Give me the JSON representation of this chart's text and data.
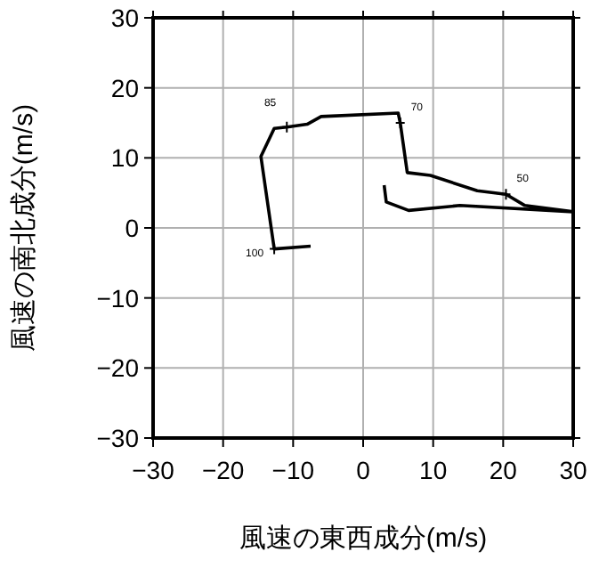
{
  "chart_data": {
    "type": "line",
    "xlabel": "風速の東西成分(m/s)",
    "ylabel": "風速の南北成分(m/s)",
    "xlim": [
      -30,
      30
    ],
    "ylim": [
      -30,
      30
    ],
    "xticks": [
      -30,
      -20,
      -10,
      0,
      10,
      20,
      30
    ],
    "yticks": [
      -30,
      -20,
      -10,
      0,
      10,
      20,
      30
    ],
    "grid": true,
    "line_style": "solid",
    "marker": "none",
    "series": [
      {
        "color": "#000000",
        "x": [
          -7.5,
          -12.7,
          -14.6,
          -12.7,
          -10.9,
          -8.0,
          -6.0,
          5.0,
          5.3,
          6.3,
          9.6,
          16.3,
          20.4,
          23.1,
          30.0,
          13.8,
          6.5,
          3.3,
          3.0
        ],
        "values": [
          -2.6,
          -3.0,
          10.2,
          14.2,
          14.4,
          14.8,
          15.9,
          16.4,
          15.0,
          7.9,
          7.5,
          5.3,
          4.8,
          3.2,
          2.3,
          3.2,
          2.5,
          3.7,
          6.1
        ]
      }
    ],
    "annotations": [
      {
        "text": "100",
        "x": -12.7,
        "y": -3.0
      },
      {
        "text": "85",
        "x": -10.9,
        "y": 14.4
      },
      {
        "text": "70",
        "x": 5.3,
        "y": 15.0
      },
      {
        "text": "50",
        "x": 20.4,
        "y": 4.8
      }
    ]
  }
}
